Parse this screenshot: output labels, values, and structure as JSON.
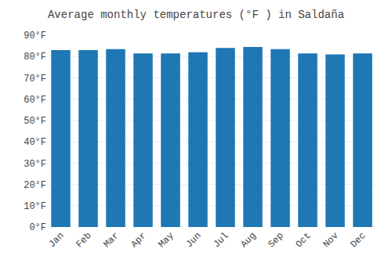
{
  "chart_data": {
    "type": "bar",
    "title": "Average monthly temperatures (°F ) in Saldaña",
    "categories": [
      "Jan",
      "Feb",
      "Mar",
      "Apr",
      "May",
      "Jun",
      "Jul",
      "Aug",
      "Sep",
      "Oct",
      "Nov",
      "Dec"
    ],
    "values": [
      83,
      83,
      83.5,
      81.5,
      81.5,
      82,
      84,
      84.5,
      83.5,
      81.5,
      81,
      81.5
    ],
    "ylim": [
      0,
      90
    ],
    "yticks": [
      {
        "value": 0,
        "label": "0°F"
      },
      {
        "value": 10,
        "label": "10°F"
      },
      {
        "value": 20,
        "label": "20°F"
      },
      {
        "value": 30,
        "label": "30°F"
      },
      {
        "value": 40,
        "label": "40°F"
      },
      {
        "value": 50,
        "label": "50°F"
      },
      {
        "value": 60,
        "label": "60°F"
      },
      {
        "value": 70,
        "label": "70°F"
      },
      {
        "value": 80,
        "label": "80°F"
      },
      {
        "value": 90,
        "label": "90°F"
      }
    ],
    "grid": true
  }
}
